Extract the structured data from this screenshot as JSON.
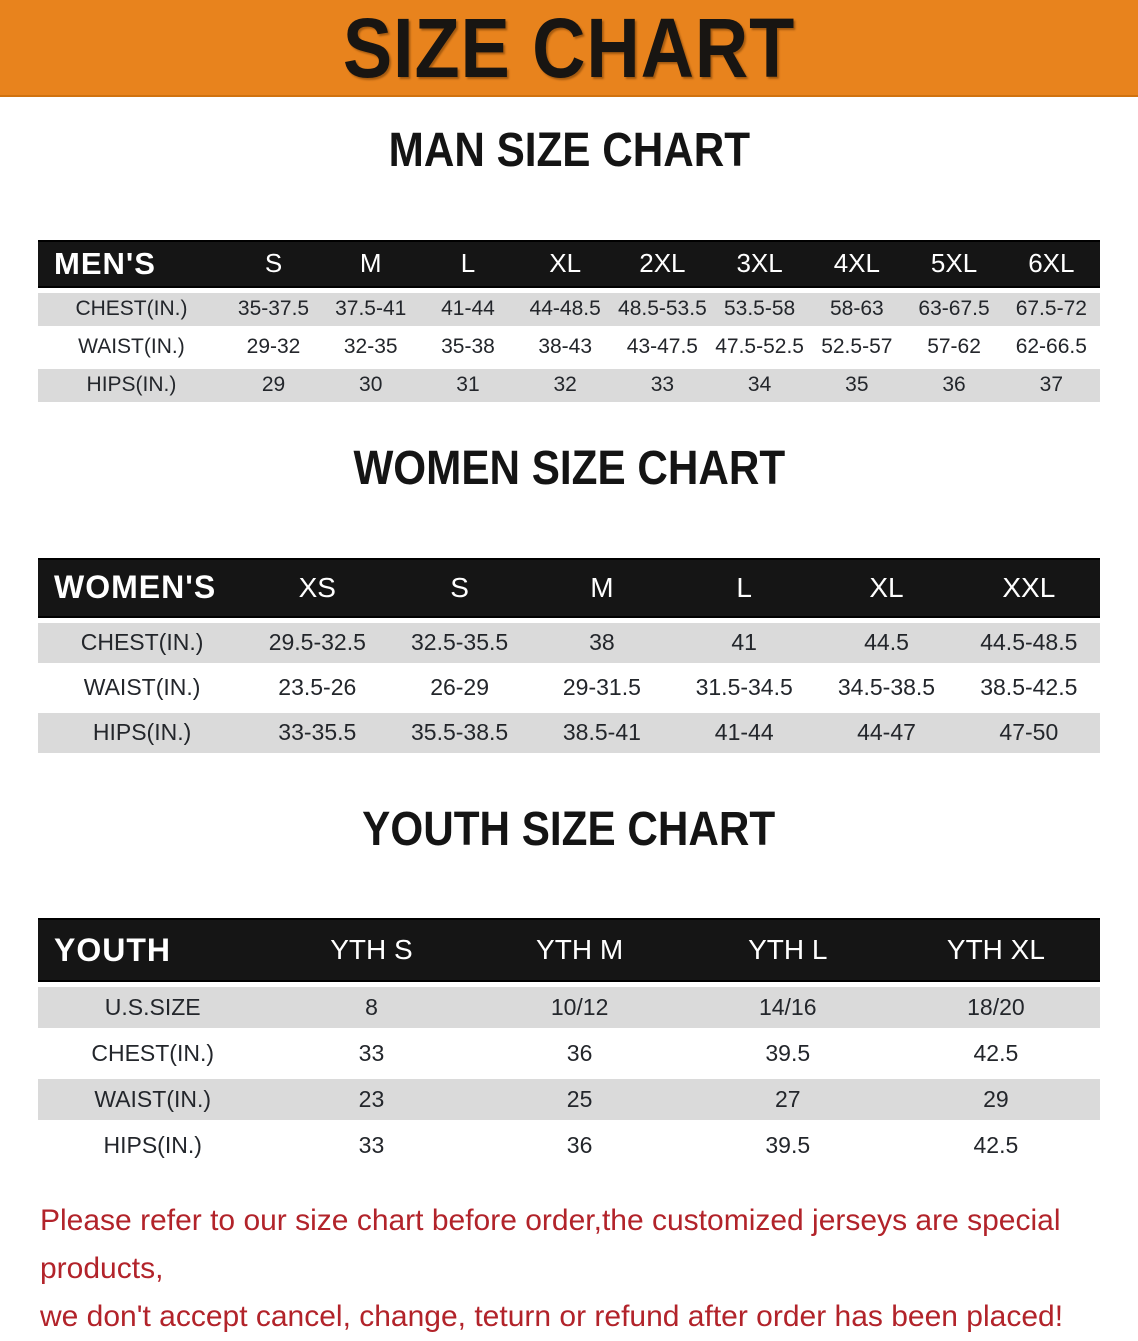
{
  "banner": {
    "title": "SIZE CHART",
    "bg_color": "#E8831D",
    "text_color": "#181512"
  },
  "colors": {
    "header_bar": "#151515",
    "row_gray": "#dadada",
    "row_white": "#ffffff",
    "disclaimer_red": "#B2232A"
  },
  "sections": {
    "men": {
      "heading": "MAN SIZE CHART",
      "table": {
        "label": "MEN'S",
        "sizes": [
          "S",
          "M",
          "L",
          "XL",
          "2XL",
          "3XL",
          "4XL",
          "5XL",
          "6XL"
        ],
        "rows": [
          {
            "label": "CHEST(IN.)",
            "values": [
              "35-37.5",
              "37.5-41",
              "41-44",
              "44-48.5",
              "48.5-53.5",
              "53.5-58",
              "58-63",
              "63-67.5",
              "67.5-72"
            ]
          },
          {
            "label": "WAIST(IN.)",
            "values": [
              "29-32",
              "32-35",
              "35-38",
              "38-43",
              "43-47.5",
              "47.5-52.5",
              "52.5-57",
              "57-62",
              "62-66.5"
            ]
          },
          {
            "label": "HIPS(IN.)",
            "values": [
              "29",
              "30",
              "31",
              "32",
              "33",
              "34",
              "35",
              "36",
              "37"
            ]
          }
        ]
      }
    },
    "women": {
      "heading": "WOMEN SIZE CHART",
      "table": {
        "label": "WOMEN'S",
        "sizes": [
          "XS",
          "S",
          "M",
          "L",
          "XL",
          "XXL"
        ],
        "rows": [
          {
            "label": "CHEST(IN.)",
            "values": [
              "29.5-32.5",
              "32.5-35.5",
              "38",
              "41",
              "44.5",
              "44.5-48.5"
            ]
          },
          {
            "label": "WAIST(IN.)",
            "values": [
              "23.5-26",
              "26-29",
              "29-31.5",
              "31.5-34.5",
              "34.5-38.5",
              "38.5-42.5"
            ]
          },
          {
            "label": "HIPS(IN.)",
            "values": [
              "33-35.5",
              "35.5-38.5",
              "38.5-41",
              "41-44",
              "44-47",
              "47-50"
            ]
          }
        ]
      }
    },
    "youth": {
      "heading": "YOUTH SIZE CHART",
      "table": {
        "label": "YOUTH",
        "sizes": [
          "YTH S",
          "YTH M",
          "YTH L",
          "YTH XL"
        ],
        "rows": [
          {
            "label": "U.S.SIZE",
            "values": [
              "8",
              "10/12",
              "14/16",
              "18/20"
            ]
          },
          {
            "label": "CHEST(IN.)",
            "values": [
              "33",
              "36",
              "39.5",
              "42.5"
            ]
          },
          {
            "label": "WAIST(IN.)",
            "values": [
              "23",
              "25",
              "27",
              "29"
            ]
          },
          {
            "label": "HIPS(IN.)",
            "values": [
              "33",
              "36",
              "39.5",
              "42.5"
            ]
          }
        ]
      }
    }
  },
  "footer": {
    "line1": "Please refer to our size chart before order,the customized jerseys are special products,",
    "line2": "we don't accept cancel, change, teturn or refund after order has been placed!"
  }
}
